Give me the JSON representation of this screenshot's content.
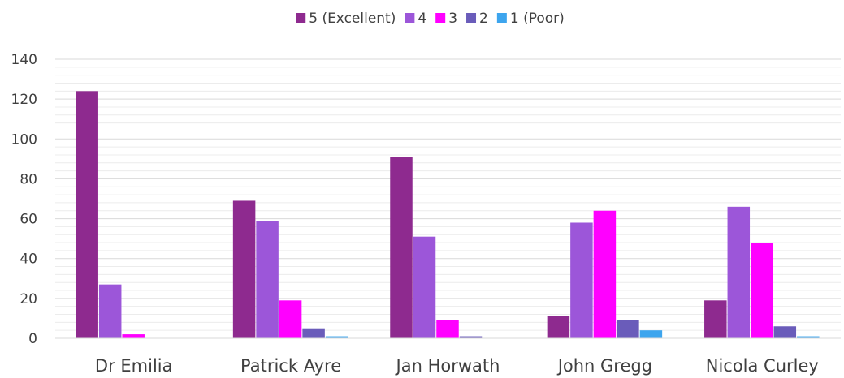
{
  "chart_data": {
    "type": "bar",
    "title": "",
    "xlabel": "",
    "ylabel": "",
    "categories": [
      "Dr Emilia",
      "Patrick Ayre",
      "Jan Horwath",
      "John Gregg",
      "Nicola Curley"
    ],
    "series": [
      {
        "name": "5 (Excellent)",
        "color": "#8e2a8f",
        "values": [
          124,
          69,
          91,
          11,
          19
        ]
      },
      {
        "name": "4",
        "color": "#9c56d9",
        "values": [
          27,
          59,
          51,
          58,
          66
        ]
      },
      {
        "name": "3",
        "color": "#ff00ff",
        "values": [
          2,
          19,
          9,
          64,
          48
        ]
      },
      {
        "name": "2",
        "color": "#6a5cba",
        "values": [
          0,
          5,
          1,
          9,
          6
        ]
      },
      {
        "name": "1 (Poor)",
        "color": "#3da5ee",
        "values": [
          0,
          1,
          0,
          4,
          1
        ]
      }
    ],
    "ylim": [
      0,
      140
    ],
    "yticks": [
      0,
      20,
      40,
      60,
      80,
      100,
      120,
      140
    ],
    "grid": true,
    "minor_grid": true,
    "legend_position": "top-center"
  }
}
